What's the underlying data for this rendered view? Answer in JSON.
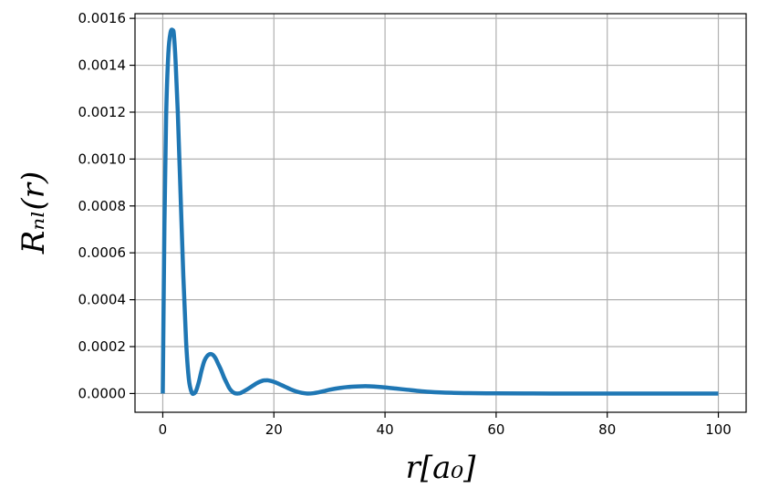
{
  "chart_data": {
    "type": "line",
    "title": "",
    "xlabel": "r[a₀]",
    "ylabel": "Rₙₗ(r)",
    "xlim": [
      -5,
      105
    ],
    "ylim": [
      -8e-05,
      0.00162
    ],
    "xticks": [
      0,
      20,
      40,
      60,
      80,
      100
    ],
    "xtick_labels": [
      "0",
      "20",
      "40",
      "60",
      "80",
      "100"
    ],
    "yticks": [
      0,
      0.0002,
      0.0004,
      0.0006,
      0.0008,
      0.001,
      0.0012,
      0.0014,
      0.0016
    ],
    "ytick_labels": [
      "0.0000",
      "0.0002",
      "0.0004",
      "0.0006",
      "0.0008",
      "0.0010",
      "0.0012",
      "0.0014",
      "0.0016"
    ],
    "grid": true,
    "line_color": "#1f77b4",
    "series": [
      {
        "x": [
          0,
          0.3,
          0.6,
          1.0,
          1.4,
          1.8,
          2.0,
          2.3,
          2.7,
          3.2,
          3.7,
          4.2,
          4.7,
          5.2,
          5.6,
          6.0,
          6.5,
          7.0,
          7.5,
          8.0,
          8.5,
          9.0,
          9.5,
          10.0,
          10.5,
          11.0,
          11.5,
          12.0,
          12.5,
          13.0,
          13.5,
          14.0,
          15.0,
          16.0,
          17.0,
          18.0,
          18.5,
          19.0,
          20.0,
          21.0,
          22.0,
          23.0,
          24.0,
          25.0,
          26.0,
          27.0,
          28.0,
          29.0,
          30.0,
          32.0,
          34.0,
          36.0,
          37.0,
          38.0,
          40.0,
          42.0,
          44.0,
          46.0,
          48.0,
          50.0,
          52.0,
          55.0,
          60.0,
          65.0,
          70.0,
          80.0,
          90.0,
          100.0
        ],
        "values": [
          0,
          0.00072,
          0.00118,
          0.00145,
          0.00154,
          0.00155,
          0.00153,
          0.00142,
          0.0012,
          0.00085,
          0.0005,
          0.00022,
          6e-05,
          5e-06,
          0.0,
          1.2e-05,
          5e-05,
          0.0001,
          0.00014,
          0.00016,
          0.000168,
          0.000165,
          0.00015,
          0.000125,
          0.0001,
          7e-05,
          4.5e-05,
          2.2e-05,
          8e-06,
          1e-06,
          0.0,
          2e-06,
          1.5e-05,
          3e-05,
          4.5e-05,
          5.5e-05,
          5.6e-05,
          5.6e-05,
          5e-05,
          4e-05,
          2.9e-05,
          1.8e-05,
          9e-06,
          3e-06,
          0.0,
          1e-06,
          5e-06,
          1e-05,
          1.6e-05,
          2.4e-05,
          2.9e-05,
          3.1e-05,
          3.1e-05,
          3e-05,
          2.6e-05,
          2.1e-05,
          1.6e-05,
          1.1e-05,
          7e-06,
          4.5e-06,
          3e-06,
          1.5e-06,
          5e-07,
          1e-07,
          0.0,
          0.0,
          0.0,
          0.0
        ]
      }
    ]
  }
}
